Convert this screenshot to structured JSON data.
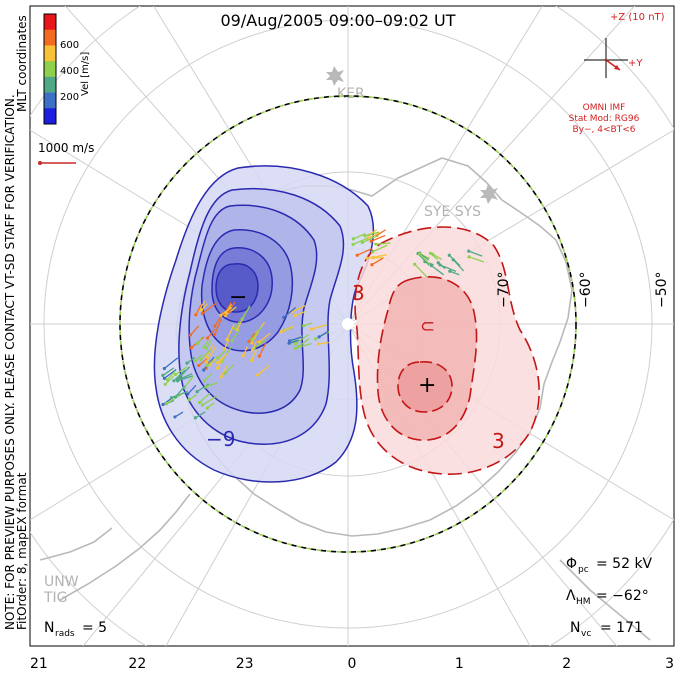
{
  "title": "09/Aug/2005 09:00–09:02 UT",
  "coordinate_label": "MLT coordinates",
  "preview_note": "NOTE: FOR PREVIEW PURPOSES ONLY. PLEASE CONTACT VT-SD STAFF FOR VERIFICATION.",
  "fit_order_note": "FitOrder: 8, mapEX format",
  "colorbar": {
    "label": "Vel [m/s]",
    "ticks": [
      "600",
      "400",
      "200"
    ],
    "colors": [
      "#e8151a",
      "#f26b21",
      "#f7c23a",
      "#8fd14f",
      "#4fa886",
      "#3d6fc6",
      "#1d1ee0"
    ]
  },
  "velocity_scale": {
    "label": "1000 m/s",
    "color": "#cc2a2a"
  },
  "imf": {
    "plus_z": "+Z (10 nT)",
    "plus_y": "+Y",
    "model_title": "OMNI IMF",
    "model": "Stat Mod: RG96",
    "condition": "By−, 4<BT<6",
    "color": "#d31f1f"
  },
  "stations": [
    {
      "label": "KER"
    },
    {
      "label": "SYE SYS"
    },
    {
      "label": "UNW"
    },
    {
      "label": "TIG"
    }
  ],
  "latitude_labels": [
    "−60°",
    "−50°",
    "−70°"
  ],
  "stats": {
    "phi_pc_symbol": "Φ",
    "phi_pc_sub": "pc",
    "phi_pc_value": "= 52 kV",
    "lambda_hm_symbol": "Λ",
    "lambda_hm_sub": "HM",
    "lambda_hm_value": "= −62°",
    "n_vc_symbol": "N",
    "n_vc_sub": "vc",
    "n_vc_value": "= 171",
    "n_rads_symbol": "N",
    "n_rads_sub": "rads",
    "n_rads_value": "= 5"
  },
  "contour_labels": {
    "negative": "−9",
    "positive": "3",
    "positive_inner": "3"
  },
  "extrema": {
    "min_symbol": "−",
    "max_symbol": "+"
  },
  "chart_data": {
    "type": "polar convection map",
    "x_axis": {
      "label": "MLT",
      "ticks": [
        "21",
        "22",
        "23",
        "0",
        "1",
        "2",
        "3"
      ]
    },
    "lowest_latitude_deg": -62,
    "cross_polar_cap_potential_kV": 52,
    "vectors_count": 171,
    "radars_count": 5,
    "colors": {
      "negative_cell": "#2a2ab0",
      "negative_fill": "#b8bde8",
      "positive_cell": "#c41616",
      "positive_fill": "#f6c9c9",
      "coast": "#b9b9b9",
      "grid": "#cfcfcf"
    }
  }
}
